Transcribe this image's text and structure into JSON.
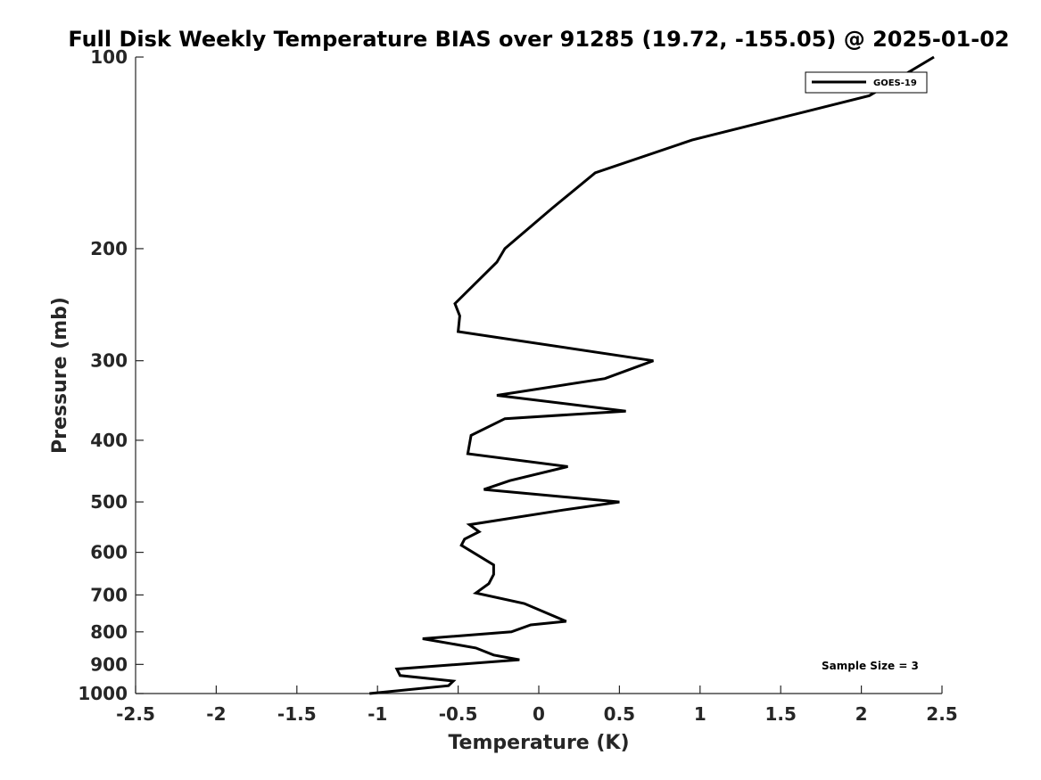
{
  "chart_data": {
    "type": "line",
    "title": "Full Disk Weekly Temperature BIAS over 91285 (19.72, -155.05) @ 2025-01-02",
    "xlabel": "Temperature (K)",
    "ylabel": "Pressure (mb)",
    "xlim": [
      -2.5,
      2.5
    ],
    "ylim": [
      100,
      1000
    ],
    "y_scale": "log",
    "y_reversed": true,
    "x_ticks": [
      -2.5,
      -2,
      -1.5,
      -1,
      -0.5,
      0,
      0.5,
      1,
      1.5,
      2,
      2.5
    ],
    "x_tick_labels": [
      "-2.5",
      "-2",
      "-1.5",
      "-1",
      "-0.5",
      "0",
      "0.5",
      "1",
      "1.5",
      "2",
      "2.5"
    ],
    "y_ticks": [
      100,
      200,
      300,
      400,
      500,
      600,
      700,
      800,
      900,
      1000
    ],
    "y_tick_labels": [
      "100",
      "200",
      "300",
      "400",
      "500",
      "600",
      "700",
      "800",
      "900",
      "1000"
    ],
    "grid": false,
    "legend_position": "top-right",
    "annotation": "Sample Size = 3",
    "series": [
      {
        "name": "GOES-19",
        "color": "#000000",
        "x": [
          2.45,
          2.05,
          0.95,
          0.35,
          0.08,
          -0.21,
          -0.26,
          -0.52,
          -0.49,
          -0.5,
          0.71,
          0.41,
          -0.26,
          0.54,
          -0.21,
          -0.42,
          -0.44,
          0.18,
          -0.18,
          -0.34,
          0.5,
          0.15,
          -0.43,
          -0.37,
          -0.46,
          -0.48,
          -0.28,
          -0.28,
          -0.31,
          -0.39,
          -0.09,
          0.09,
          0.17,
          -0.05,
          -0.17,
          -0.72,
          -0.39,
          -0.28,
          -0.12,
          -0.88,
          -0.86,
          -0.53,
          -0.56,
          -1.05
        ],
        "y": [
          100,
          115,
          135,
          152,
          173,
          200,
          210,
          244,
          255,
          270,
          300,
          320,
          340,
          360,
          370,
          393,
          420,
          440,
          463,
          478,
          500,
          515,
          543,
          557,
          572,
          585,
          628,
          650,
          672,
          695,
          722,
          755,
          770,
          780,
          800,
          820,
          848,
          870,
          885,
          915,
          937,
          956,
          972,
          1000
        ]
      }
    ]
  }
}
